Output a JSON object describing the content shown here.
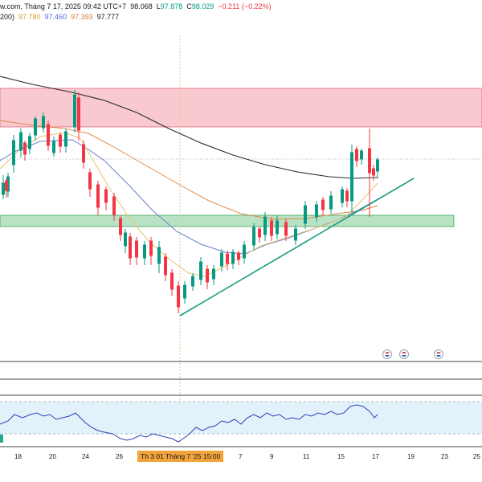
{
  "header": {
    "source": "w.com,  Tháng 7 17, 2025 09:42 UTC+7",
    "o_value": "98.068",
    "l_label": "L",
    "l_value": "97.878",
    "c_label": "C",
    "c_value": "98.029",
    "change": "−0.211 (−0.22%)",
    "ma_prefix": "200)",
    "ma1": "97.780",
    "ma2": "97.460",
    "ma3": "97.393",
    "ma4": "97.777"
  },
  "x_axis": {
    "labels": [
      "18",
      "20",
      "24",
      "26",
      "7",
      "9",
      "11",
      "15",
      "17",
      "19",
      "23",
      "25"
    ],
    "cursor_label": "Th 3 01 Tháng 7 '25   15:00"
  },
  "colors": {
    "resistance_zone": "#f8c9cf",
    "support_zone": "#b9e2c4",
    "trendline": "#159b7d",
    "up_candle": "#089981",
    "down_candle": "#f23645",
    "ema_fast": "#e9c46a",
    "ema_slow": "#6a7fd0",
    "sma_mid": "#e08a4c",
    "sma_long": "#2a2a2a",
    "rsi_line": "#2842b5",
    "rsi_band": "#e3f1fb"
  },
  "icons": [
    "us-flag-event-icon",
    "us-flag-event-icon",
    "us-flag-event-icon"
  ]
}
